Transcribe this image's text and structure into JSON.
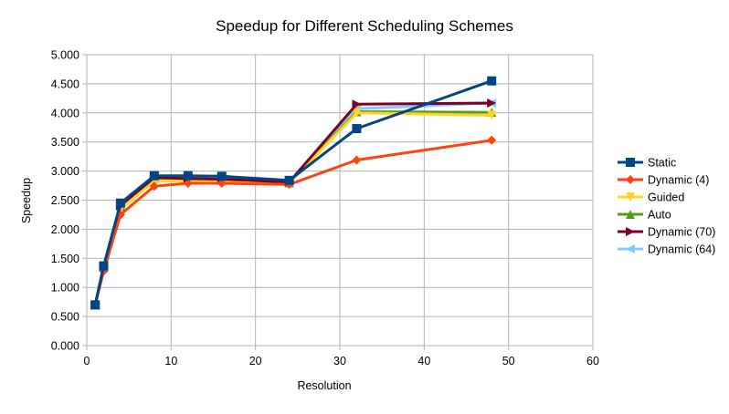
{
  "chart_data": {
    "type": "line",
    "title": "Speedup for Different Scheduling Schemes",
    "xlabel": "Resolution",
    "ylabel": "Speedup",
    "xlim": [
      0,
      60
    ],
    "ylim": [
      0,
      5
    ],
    "x_ticks": [
      "0",
      "10",
      "20",
      "30",
      "40",
      "50",
      "60"
    ],
    "y_ticks": [
      "0.000",
      "0.500",
      "1.000",
      "1.500",
      "2.000",
      "2.500",
      "3.000",
      "3.500",
      "4.000",
      "4.500",
      "5.000"
    ],
    "grid": true,
    "legend_position": "right",
    "series": [
      {
        "name": "Dynamic (64)",
        "color": "#83caff",
        "marker": "triangle-left",
        "points": [
          [
            1,
            0.7
          ],
          [
            2,
            1.35
          ],
          [
            4,
            2.38
          ],
          [
            8,
            2.9
          ],
          [
            12,
            2.88
          ],
          [
            16,
            2.86
          ],
          [
            24,
            2.8
          ],
          [
            32,
            4.07
          ],
          [
            48,
            4.17
          ]
        ]
      },
      {
        "name": "Auto",
        "color": "#579d1c",
        "marker": "triangle-up",
        "points": [
          [
            1,
            0.7
          ],
          [
            2,
            1.35
          ],
          [
            4,
            2.4
          ],
          [
            8,
            2.88
          ],
          [
            12,
            2.86
          ],
          [
            16,
            2.84
          ],
          [
            24,
            2.8
          ],
          [
            32,
            4.02
          ],
          [
            48,
            4.01
          ]
        ]
      },
      {
        "name": "Guided",
        "color": "#ffd320",
        "marker": "triangle-down",
        "points": [
          [
            1,
            0.7
          ],
          [
            2,
            1.33
          ],
          [
            4,
            2.35
          ],
          [
            8,
            2.83
          ],
          [
            12,
            2.83
          ],
          [
            16,
            2.82
          ],
          [
            24,
            2.79
          ],
          [
            32,
            4.0
          ],
          [
            48,
            3.96
          ]
        ]
      },
      {
        "name": "Dynamic (70)",
        "color": "#7e0021",
        "marker": "triangle-right",
        "points": [
          [
            1,
            0.7
          ],
          [
            2,
            1.36
          ],
          [
            4,
            2.41
          ],
          [
            8,
            2.89
          ],
          [
            12,
            2.87
          ],
          [
            16,
            2.86
          ],
          [
            24,
            2.81
          ],
          [
            32,
            4.15
          ],
          [
            48,
            4.17
          ]
        ]
      },
      {
        "name": "Dynamic (4)",
        "color": "#ff420e",
        "marker": "diamond",
        "points": [
          [
            1,
            0.7
          ],
          [
            2,
            1.28
          ],
          [
            4,
            2.25
          ],
          [
            8,
            2.74
          ],
          [
            12,
            2.79
          ],
          [
            16,
            2.79
          ],
          [
            24,
            2.77
          ],
          [
            32,
            3.19
          ],
          [
            48,
            3.53
          ]
        ]
      },
      {
        "name": "Static",
        "color": "#004586",
        "marker": "square",
        "points": [
          [
            1,
            0.7
          ],
          [
            2,
            1.37
          ],
          [
            4,
            2.45
          ],
          [
            8,
            2.92
          ],
          [
            12,
            2.92
          ],
          [
            16,
            2.91
          ],
          [
            24,
            2.84
          ],
          [
            32,
            3.73
          ],
          [
            48,
            4.55
          ]
        ]
      }
    ],
    "legend_order": [
      "Static",
      "Dynamic (4)",
      "Guided",
      "Auto",
      "Dynamic (70)",
      "Dynamic (64)"
    ]
  },
  "colors": {
    "grid": "#b3b3b3",
    "background": "#ffffff"
  }
}
